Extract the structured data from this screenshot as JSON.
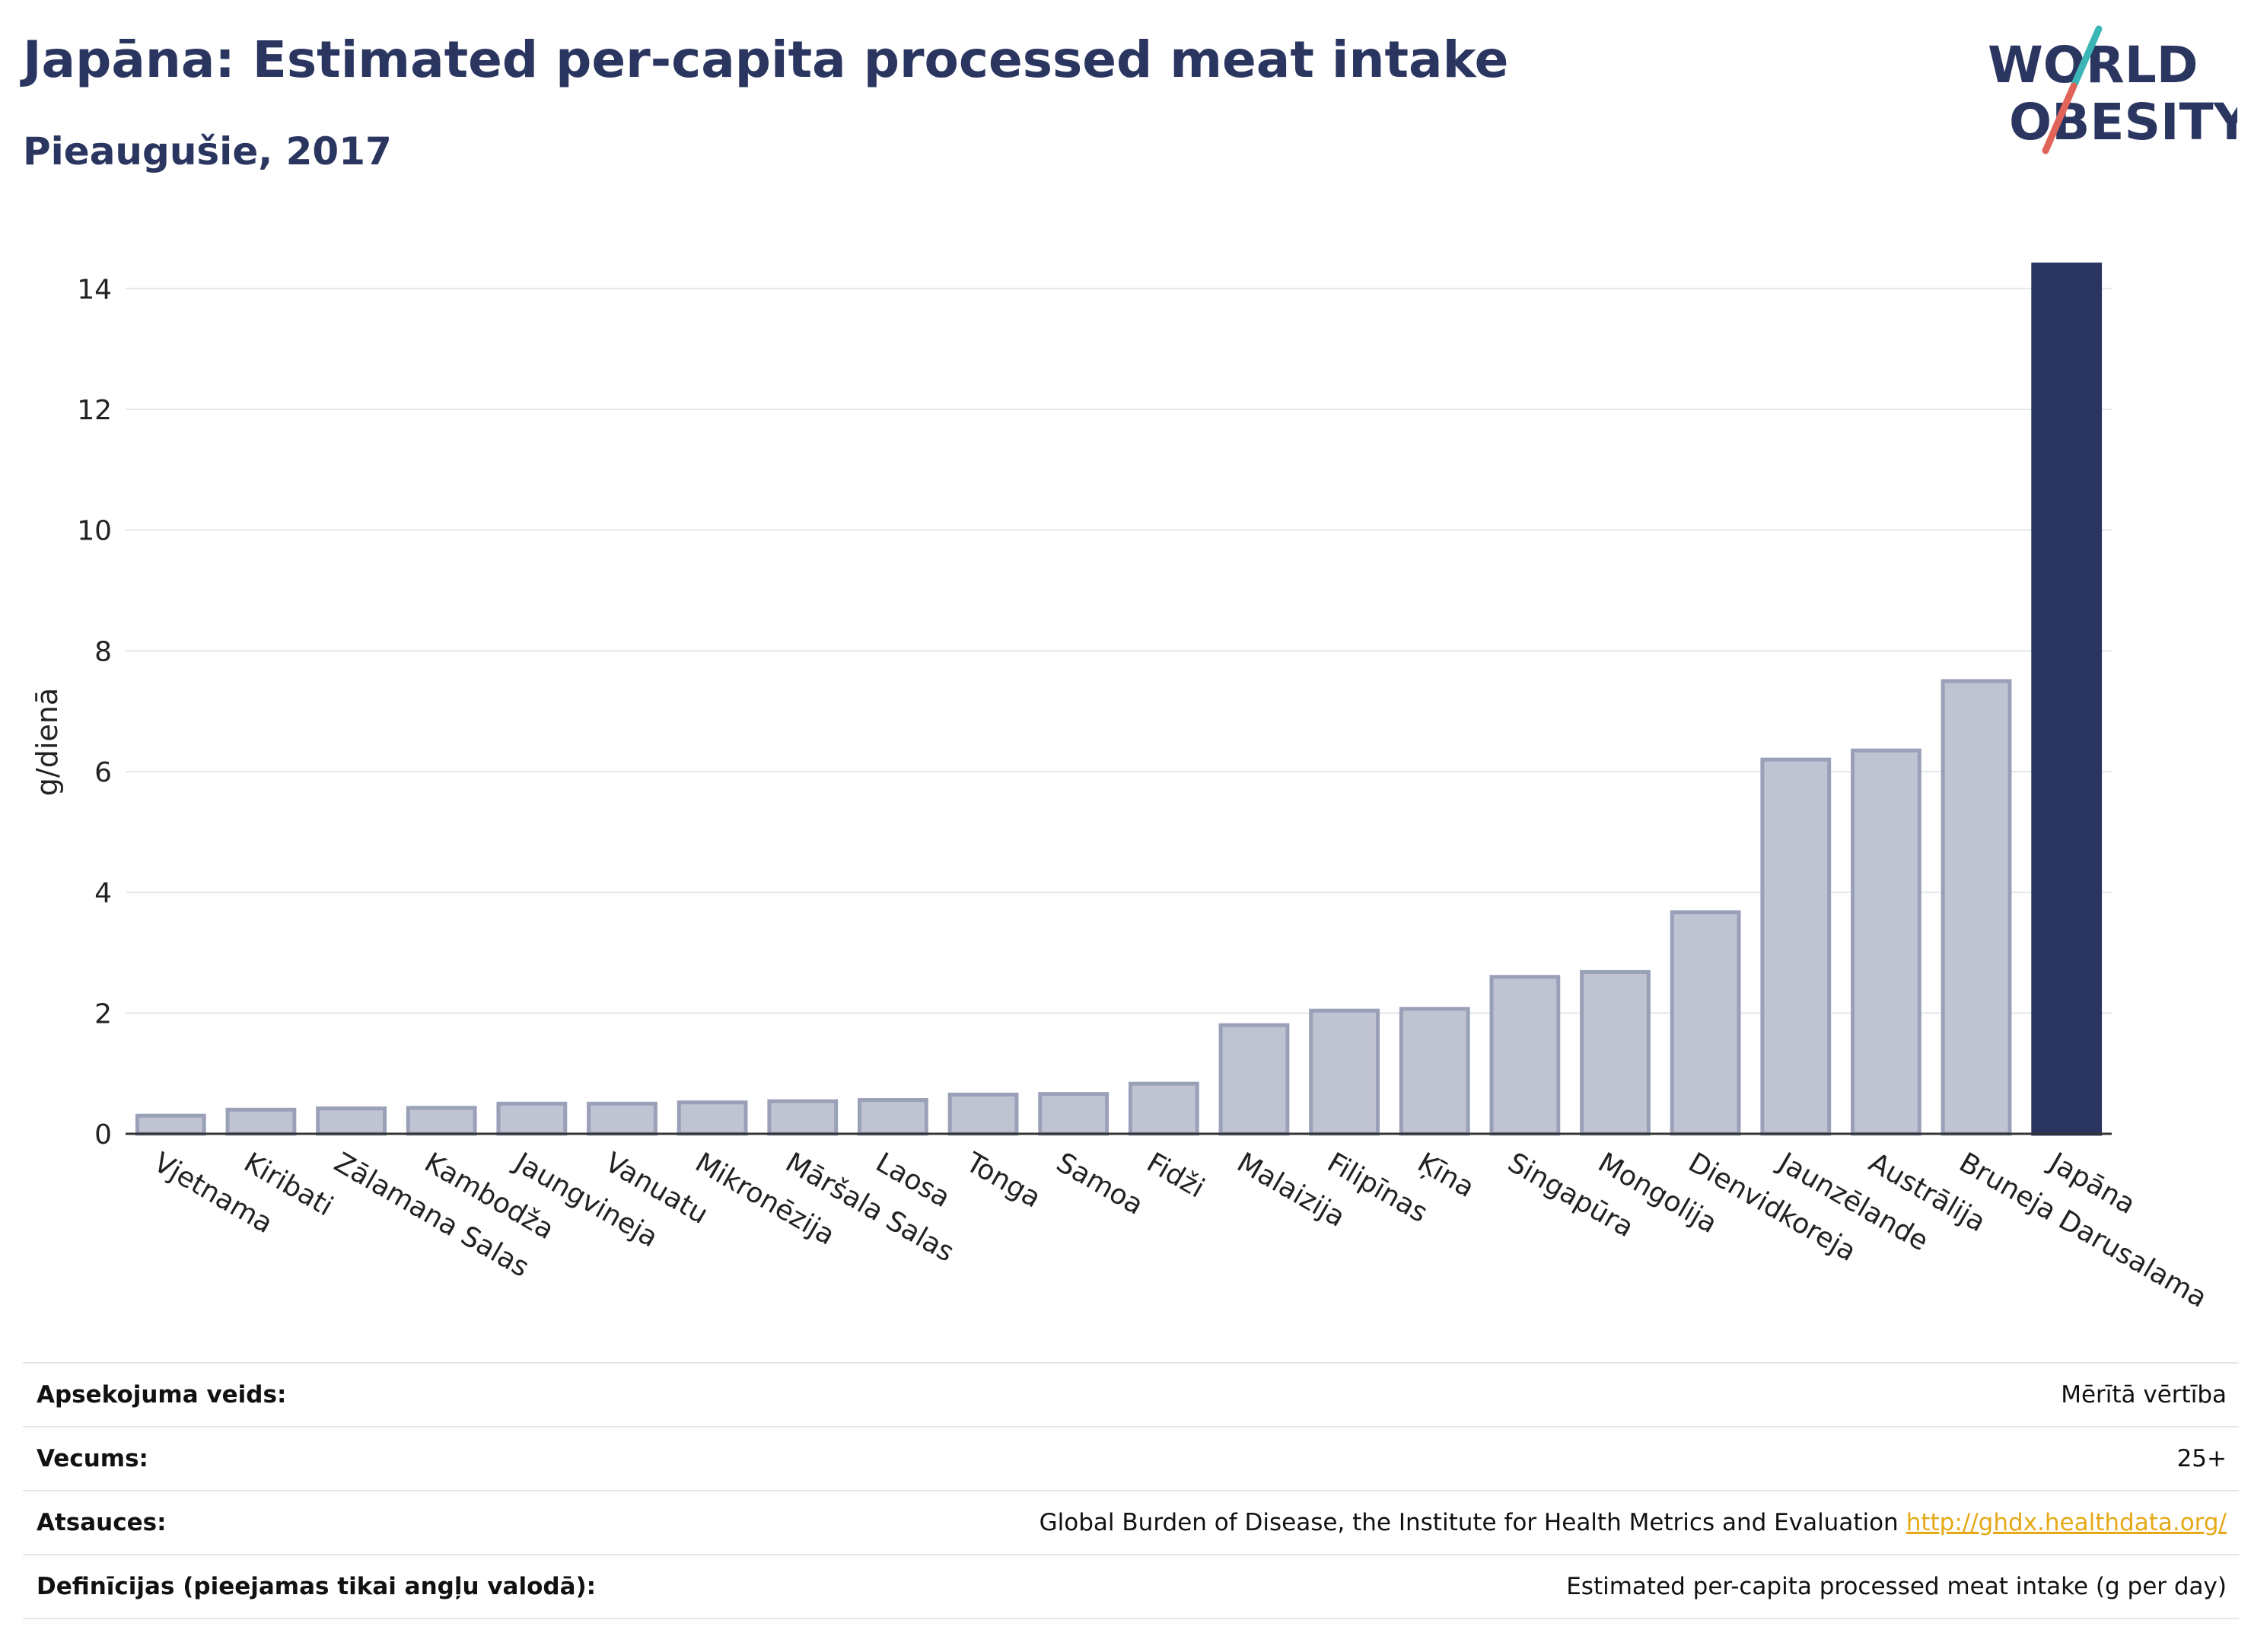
{
  "header": {
    "title": "Japāna: Estimated per-capita processed meat intake",
    "subtitle": "Pieaugušie, 2017"
  },
  "logo": {
    "line1": "WORLD",
    "line2": "OBESITY",
    "icon": "world-obesity-logo"
  },
  "colors": {
    "highlight": "#2a3560",
    "bar": "#c0c3d2",
    "bar_stroke": "#9aa0b8",
    "slash_teal": "#3bb5b5",
    "slash_red": "#e0645a"
  },
  "chart_data": {
    "type": "bar",
    "ylabel": "g/dienā",
    "ylim": [
      0,
      15
    ],
    "yticks": [
      0,
      2,
      4,
      6,
      8,
      10,
      12,
      14
    ],
    "grid": true,
    "highlight": "Japāna",
    "categories": [
      "Vjetnama",
      "Kiribati",
      "Zālamana Salas",
      "Kambodža",
      "Jaungvineja",
      "Vanuatu",
      "Mikronēzija",
      "Māršala Salas",
      "Laosa",
      "Tonga",
      "Samoa",
      "Fidži",
      "Malaizija",
      "Filipīnas",
      "Ķīna",
      "Singapūra",
      "Mongolija",
      "Dienvidkoreja",
      "Jaunzēlande",
      "Austrālija",
      "Bruneja Darusalama",
      "Japāna"
    ],
    "values": [
      0.3,
      0.4,
      0.42,
      0.43,
      0.5,
      0.5,
      0.52,
      0.54,
      0.56,
      0.65,
      0.66,
      0.83,
      1.8,
      2.04,
      2.07,
      2.6,
      2.68,
      3.67,
      6.2,
      6.35,
      7.5,
      14.4
    ]
  },
  "info": [
    {
      "label": "Apsekojuma veids:",
      "value": "Mērītā vērtība"
    },
    {
      "label": "Vecums:",
      "value": "25+"
    },
    {
      "label": "Atsauces:",
      "value": "Global Burden of Disease, the Institute for Health Metrics and Evaluation",
      "link": "http://ghdx.healthdata.org/"
    },
    {
      "label": "Definīcijas (pieejamas tikai angļu valodā):",
      "value": "Estimated per-capita processed meat intake (g per day)"
    }
  ]
}
